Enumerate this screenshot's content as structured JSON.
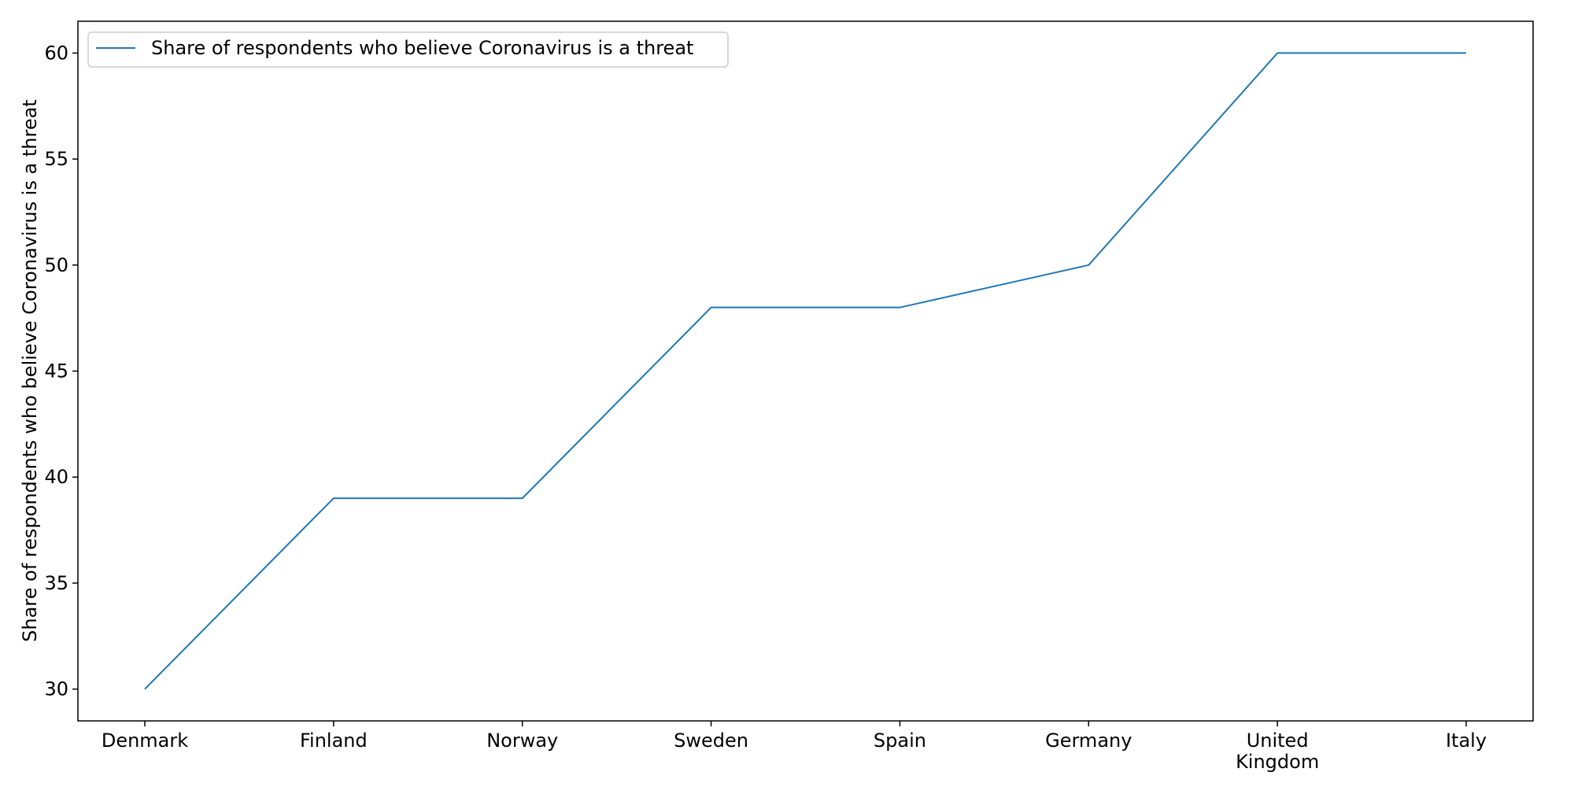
{
  "chart_data": {
    "type": "line",
    "title": "",
    "xlabel": "",
    "ylabel": "Share of respondents who believe Coronavirus is a threat",
    "categories": [
      "Denmark",
      "Finland",
      "Norway",
      "Sweden",
      "Spain",
      "Germany",
      "United Kingdom",
      "Italy"
    ],
    "series": [
      {
        "name": "Share of respondents who believe Coronavirus is a threat",
        "values": [
          30,
          39,
          39,
          48,
          48,
          50,
          60,
          60
        ],
        "color": "#1f77b4"
      }
    ],
    "ylim": [
      28.5,
      61.5
    ],
    "yticks": [
      30,
      35,
      40,
      45,
      50,
      55,
      60
    ],
    "grid": false,
    "legend": "upper-left"
  }
}
